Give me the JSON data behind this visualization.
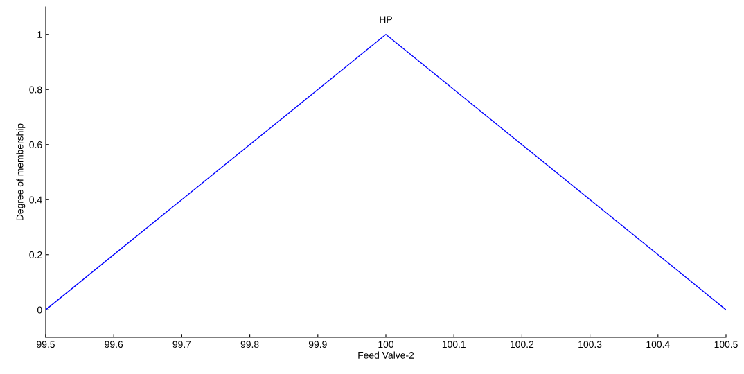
{
  "chart_data": {
    "type": "line",
    "xlabel": "Feed Valve-2",
    "ylabel": "Degree of membership",
    "x": [
      99.5,
      100,
      100.5
    ],
    "series": [
      {
        "color": "#0000ff",
        "values": [
          0,
          1,
          0
        ]
      }
    ],
    "annotations": [
      {
        "text": "HP",
        "x": 100,
        "y": 1
      }
    ],
    "xlim": [
      99.5,
      100.5
    ],
    "xticks": [
      99.5,
      99.6,
      99.7,
      99.8,
      99.9,
      100,
      100.1,
      100.2,
      100.3,
      100.4,
      100.5
    ],
    "ylim": [
      -0.1,
      1.1
    ],
    "yticks": [
      0,
      0.2,
      0.4,
      0.6,
      0.8,
      1
    ],
    "grid": false,
    "legend": false,
    "marker": "none",
    "line_style": "solid"
  }
}
